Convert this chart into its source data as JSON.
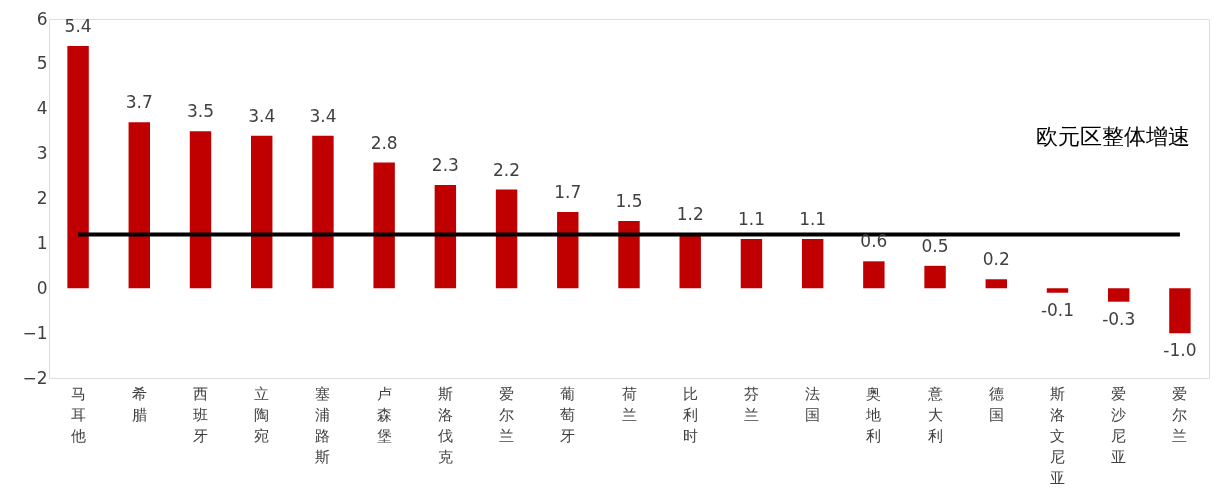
{
  "chart_data": {
    "type": "bar",
    "categories": [
      "马耳他",
      "希腊",
      "西班牙",
      "立陶宛",
      "塞浦路斯",
      "卢森堡",
      "斯洛伐克",
      "爱尔兰",
      "葡萄牙",
      "荷兰",
      "比利时",
      "芬兰",
      "法国",
      "奥地利",
      "意大利",
      "德国",
      "斯洛文尼亚",
      "爱沙尼亚",
      "爱尔兰"
    ],
    "values": [
      5.4,
      3.7,
      3.5,
      3.4,
      3.4,
      2.8,
      2.3,
      2.2,
      1.7,
      1.5,
      1.2,
      1.1,
      1.1,
      0.6,
      0.5,
      0.2,
      -0.1,
      -0.3,
      -1.0
    ],
    "value_labels": [
      "5.4",
      "3.7",
      "3.5",
      "3.4",
      "3.4",
      "2.8",
      "2.3",
      "2.2",
      "1.7",
      "1.5",
      "1.2",
      "1.1",
      "1.1",
      "0.6",
      "0.5",
      "0.2",
      "-0.1",
      "-0.3",
      "-1.0"
    ],
    "color": "#c00000",
    "ylim": [
      -2,
      6
    ],
    "yticks": [
      -2,
      -1,
      0,
      1,
      2,
      3,
      4,
      5,
      6
    ],
    "grid": false,
    "ref_lines": [
      {
        "axis": "y",
        "value": 1.2,
        "label": "欧元区整体增速",
        "color": "#000000"
      }
    ]
  }
}
